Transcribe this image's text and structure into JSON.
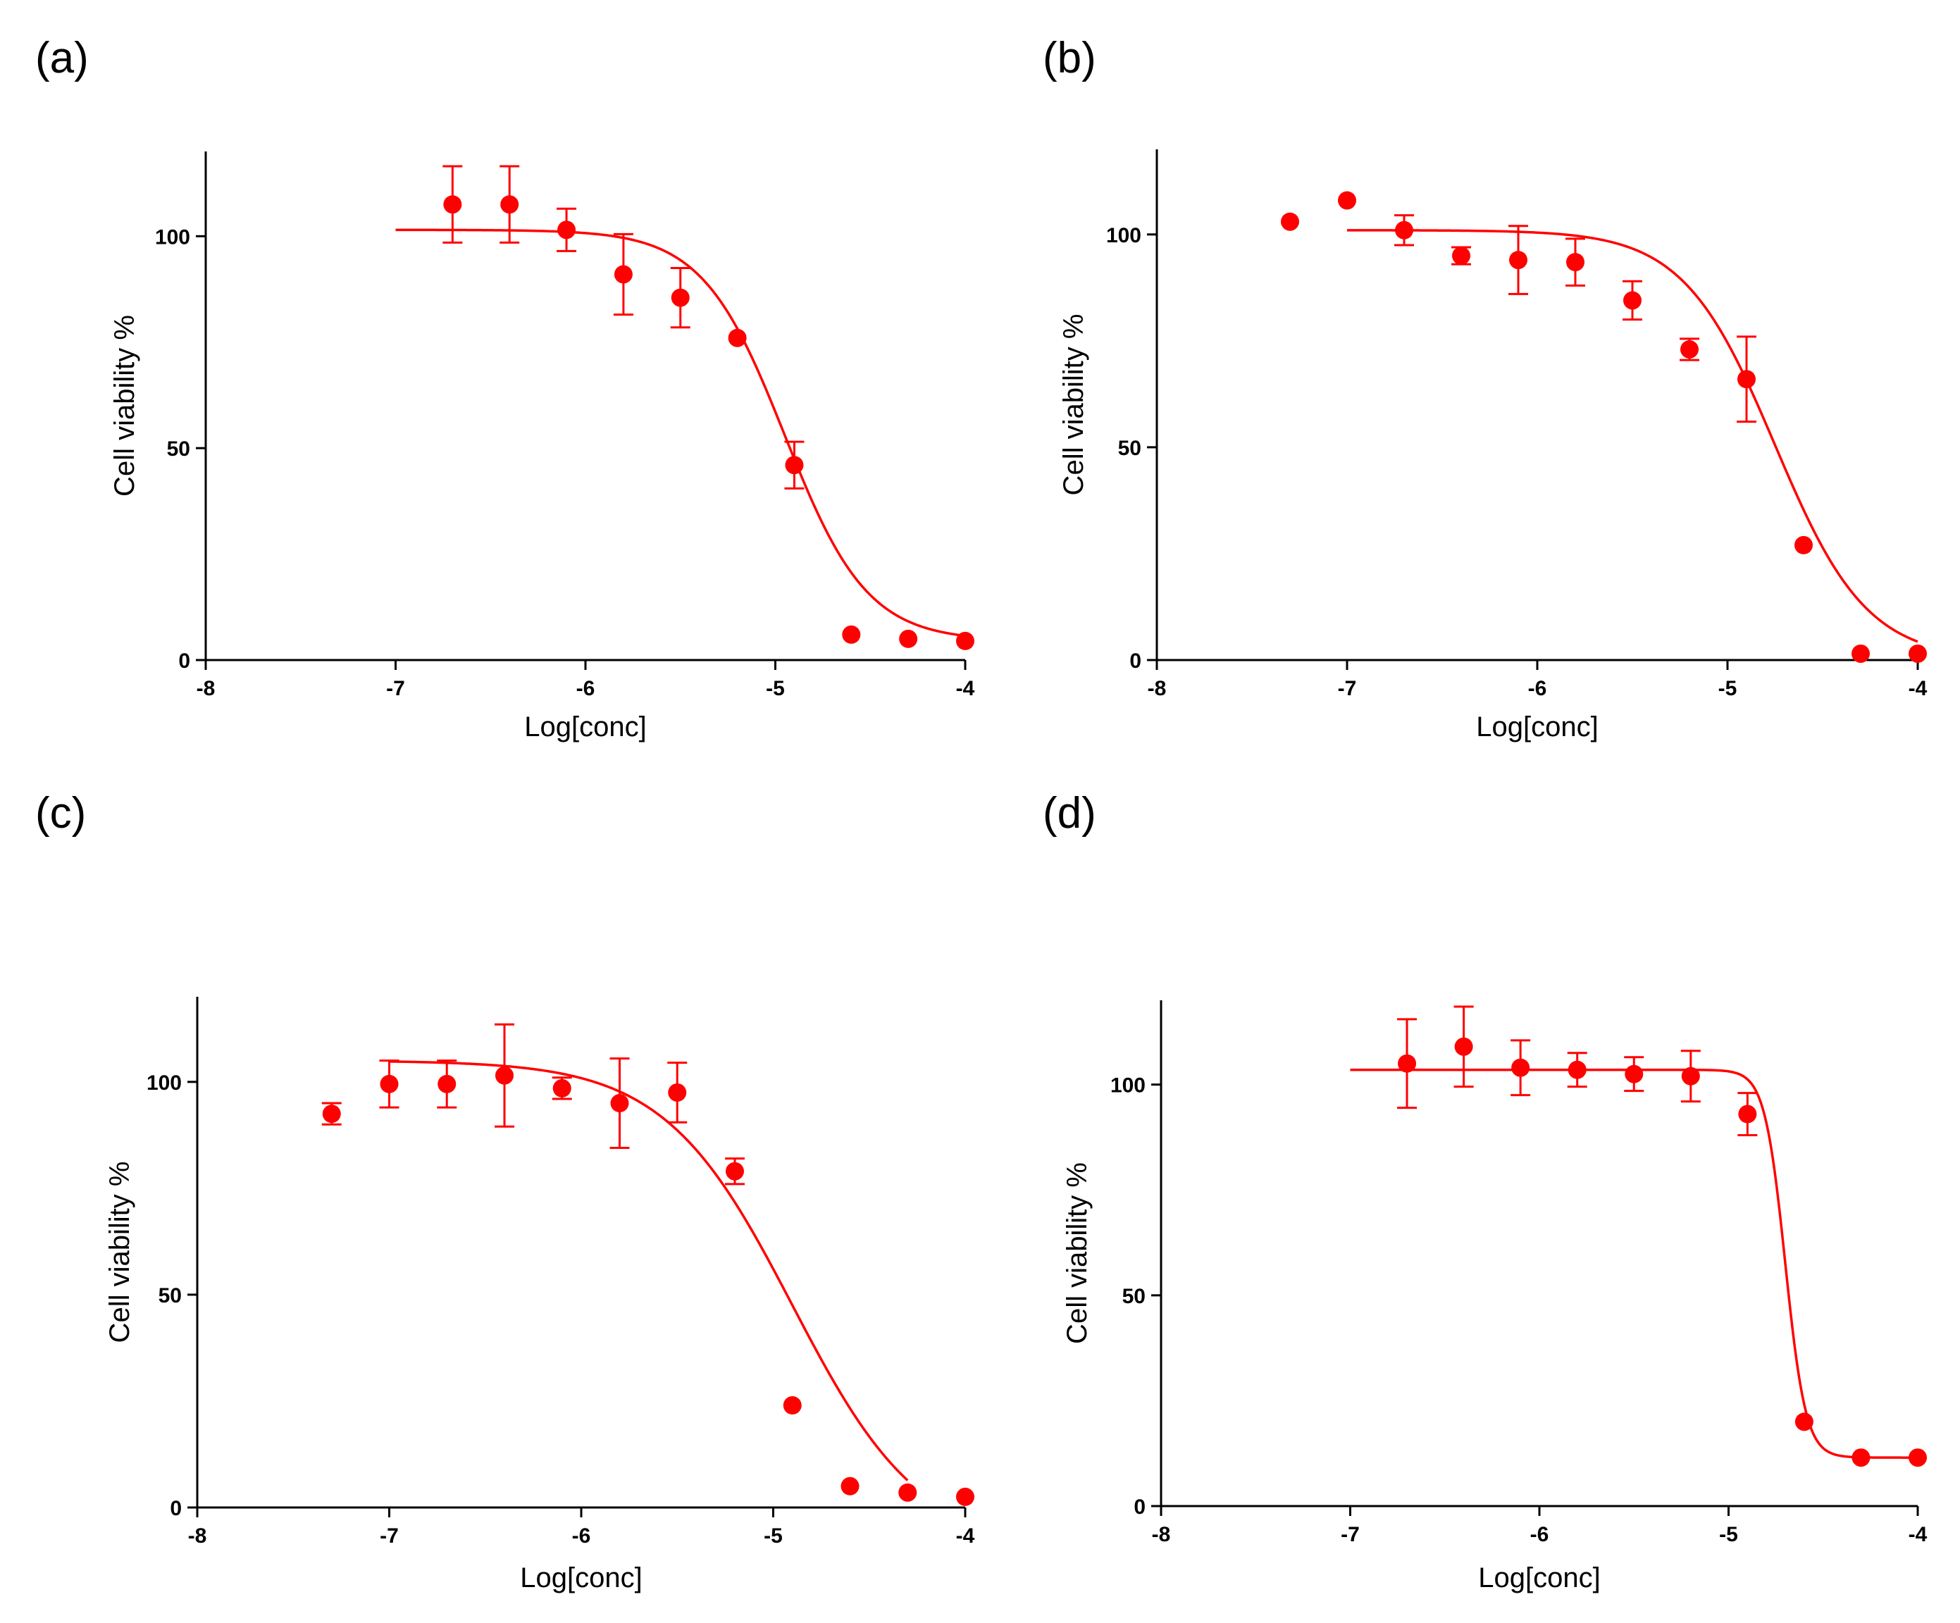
{
  "colors": {
    "series": "#ff0000",
    "axis": "#000000"
  },
  "chart_data": [
    {
      "panel_label": "(a)",
      "type": "scatter",
      "xlabel": "Log[conc]",
      "ylabel": "Cell viability %",
      "xlim": [
        -8,
        -4
      ],
      "ylim": [
        0,
        120
      ],
      "xticks": [
        -8,
        -7,
        -6,
        -5,
        -4
      ],
      "yticks": [
        0,
        50,
        100
      ],
      "x": [
        -6.7,
        -6.4,
        -6.1,
        -5.8,
        -5.5,
        -5.2,
        -4.9,
        -4.6,
        -4.3,
        -4.0
      ],
      "y": [
        107.5,
        107.5,
        101.5,
        91,
        85.5,
        76,
        46,
        6,
        5,
        4.5
      ],
      "err": [
        9,
        9,
        5,
        9.5,
        7,
        0,
        5.5,
        0,
        0,
        0
      ],
      "fit": {
        "x_range": [
          -7,
          -4
        ],
        "top": 101.5,
        "bottom": 4.5,
        "log_ic50": -4.95,
        "hill": -2.0
      }
    },
    {
      "panel_label": "(b)",
      "type": "scatter",
      "xlabel": "Log[conc]",
      "ylabel": "Cell viability %",
      "xlim": [
        -8,
        -4
      ],
      "ylim": [
        0,
        120
      ],
      "xticks": [
        -8,
        -7,
        -6,
        -5,
        -4
      ],
      "yticks": [
        0,
        50,
        100
      ],
      "x": [
        -7.3,
        -7.0,
        -6.7,
        -6.4,
        -6.1,
        -5.8,
        -5.5,
        -5.2,
        -4.9,
        -4.6,
        -4.3,
        -4.0
      ],
      "y": [
        103,
        108,
        101,
        95,
        94,
        93.5,
        84.5,
        73,
        66,
        27,
        1.5,
        1.5
      ],
      "err": [
        0,
        0,
        3.5,
        2,
        8,
        5.5,
        4.5,
        2.5,
        10,
        0,
        0,
        0
      ],
      "fit": {
        "x_range": [
          -7,
          -4
        ],
        "top": 101,
        "bottom": 0,
        "log_ic50": -4.75,
        "hill": -1.8
      }
    },
    {
      "panel_label": "(c)",
      "type": "scatter",
      "xlabel": "Log[conc]",
      "ylabel": "Cell viability %",
      "xlim": [
        -8,
        -4
      ],
      "ylim": [
        0,
        120
      ],
      "xticks": [
        -8,
        -7,
        -6,
        -5,
        -4
      ],
      "yticks": [
        0,
        50,
        100
      ],
      "x": [
        -7.3,
        -7.0,
        -6.7,
        -6.4,
        -6.1,
        -5.8,
        -5.5,
        -5.2,
        -4.9,
        -4.6,
        -4.3,
        -4.0
      ],
      "y": [
        92.5,
        99.5,
        99.5,
        101.5,
        98.5,
        95,
        97.5,
        79,
        24,
        5,
        3.5,
        2.5
      ],
      "err": [
        2.5,
        5.5,
        5.5,
        12,
        2.5,
        10.5,
        7,
        3,
        0,
        0,
        0,
        0
      ],
      "fit": {
        "x_range": [
          -7,
          -4.3
        ],
        "top": 105,
        "bottom": -10,
        "log_ic50": -4.9,
        "hill": -1.3
      }
    },
    {
      "panel_label": "(d)",
      "type": "scatter",
      "xlabel": "Log[conc]",
      "ylabel": "Cell viability %",
      "xlim": [
        -8,
        -4
      ],
      "ylim": [
        0,
        120
      ],
      "xticks": [
        -8,
        -7,
        -6,
        -5,
        -4
      ],
      "yticks": [
        0,
        50,
        100
      ],
      "x": [
        -6.7,
        -6.4,
        -6.1,
        -5.8,
        -5.5,
        -5.2,
        -4.9,
        -4.6,
        -4.3,
        -4.0
      ],
      "y": [
        105,
        109,
        104,
        103.5,
        102.5,
        102,
        93,
        20,
        11.5,
        11.5
      ],
      "err": [
        10.5,
        9.5,
        6.5,
        4,
        4,
        6,
        5,
        0,
        0,
        0
      ],
      "fit": {
        "x_range": [
          -7,
          -4
        ],
        "top": 103.5,
        "bottom": 11.5,
        "log_ic50": -4.7,
        "hill": -8.0
      }
    }
  ]
}
